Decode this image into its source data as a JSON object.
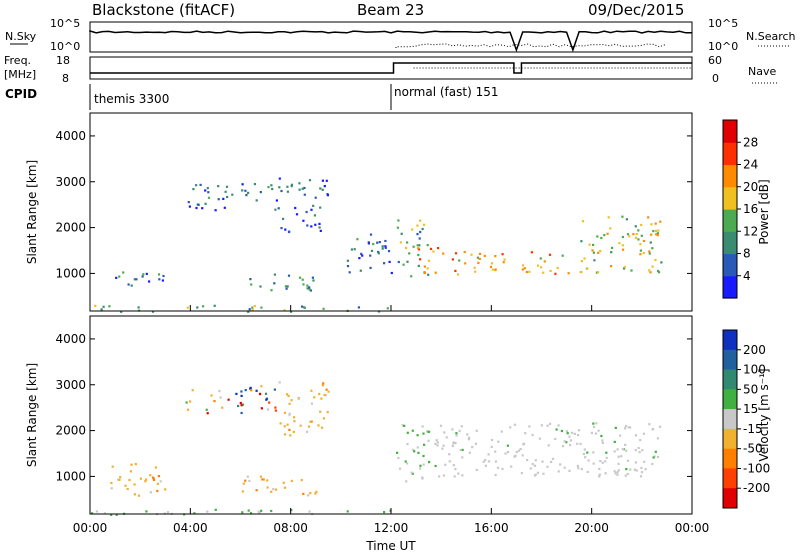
{
  "header": {
    "station": "Blackstone (fitACF)",
    "beam": "Beam 23",
    "date": "09/Dec/2015"
  },
  "summary": {
    "nsky_label": "N.Sky",
    "nsky_hi": "10^5",
    "nsky_lo": "10^0",
    "nsearch_label": "N.Search",
    "nsearch_hi": "10^5",
    "nsearch_lo": "10^0",
    "freq_label": "Freq.",
    "freq_unit": "[MHz]",
    "freq_hi": "18",
    "freq_lo": "8",
    "nave_label": "Nave",
    "nave_hi": "60",
    "nave_lo": "0",
    "cpid_label": "CPID",
    "cpid_segments": [
      {
        "label": "themis 3300",
        "start_hour": 0
      },
      {
        "label": "normal (fast) 151",
        "start_hour": 12.1
      }
    ]
  },
  "chart_data": [
    {
      "type": "heatmap",
      "panel": "power",
      "ylabel": "Slant Range [km]",
      "yticks": [
        "1000",
        "2000",
        "3000",
        "4000"
      ],
      "ylim": [
        180,
        4500
      ],
      "xlim": [
        0,
        24
      ],
      "colorbar": {
        "label": "Power [dB]",
        "ticks": [
          "4",
          "8",
          "12",
          "16",
          "20",
          "24",
          "28"
        ],
        "range": [
          0,
          32
        ],
        "colors": [
          "#1a1aff",
          "#2a5ab8",
          "#3a8c70",
          "#4caa50",
          "#f0c020",
          "#ff8c00",
          "#ff3000",
          "#e00000"
        ]
      },
      "regions": [
        {
          "t0": 0.5,
          "t1": 3.0,
          "r0": 700,
          "r1": 1050,
          "level": 0.2
        },
        {
          "t0": 3.8,
          "t1": 7.5,
          "r0": 2400,
          "r1": 3000,
          "level": 0.15
        },
        {
          "t0": 6.0,
          "t1": 9.0,
          "r0": 650,
          "r1": 1050,
          "level": 0.3
        },
        {
          "t0": 7.5,
          "t1": 9.5,
          "r0": 1900,
          "r1": 3100,
          "level": 0.15
        },
        {
          "t0": 10.0,
          "t1": 12.0,
          "r0": 1000,
          "r1": 1900,
          "level": 0.2
        },
        {
          "t0": 12.2,
          "t1": 13.5,
          "r0": 900,
          "r1": 2200,
          "level": 0.4
        },
        {
          "t0": 13.0,
          "t1": 16.5,
          "r0": 1000,
          "r1": 1600,
          "level": 0.7
        },
        {
          "t0": 17.2,
          "t1": 19.2,
          "r0": 1000,
          "r1": 1500,
          "level": 0.65
        },
        {
          "t0": 19.5,
          "t1": 22.8,
          "r0": 1000,
          "r1": 2300,
          "level": 0.55
        },
        {
          "t0": 0,
          "t1": 12,
          "r0": 180,
          "r1": 320,
          "level": 0.35
        }
      ]
    },
    {
      "type": "heatmap",
      "panel": "velocity",
      "ylabel": "Slant Range [km]",
      "yticks": [
        "1000",
        "2000",
        "3000",
        "4000"
      ],
      "ylim": [
        180,
        4500
      ],
      "xlim": [
        0,
        24
      ],
      "xticks": [
        "00:00",
        "04:00",
        "08:00",
        "12:00",
        "16:00",
        "20:00",
        "00:00"
      ],
      "xlabel": "Time UT",
      "colorbar": {
        "label": "Velocity [m s⁻¹]",
        "ticks": [
          "200",
          "100",
          "50",
          "15",
          "-15",
          "-50",
          "-100",
          "-200"
        ],
        "range": [
          -250,
          250
        ],
        "colors": [
          "#1030c0",
          "#2060a0",
          "#308a70",
          "#40b040",
          "#c8c8c8",
          "#f0b030",
          "#ff8000",
          "#ff4000",
          "#e00000"
        ]
      },
      "regions": [
        {
          "t0": 0.5,
          "t1": 3.0,
          "r0": 600,
          "r1": 1300,
          "level": "neg"
        },
        {
          "t0": 3.8,
          "t1": 7.5,
          "r0": 2400,
          "r1": 3000,
          "level": "mixed"
        },
        {
          "t0": 6.0,
          "t1": 9.0,
          "r0": 600,
          "r1": 1050,
          "level": "neg"
        },
        {
          "t0": 7.5,
          "t1": 9.5,
          "r0": 1900,
          "r1": 3100,
          "level": "neg"
        },
        {
          "t0": 12.2,
          "t1": 13.5,
          "r0": 900,
          "r1": 2200,
          "level": "pos"
        },
        {
          "t0": 13.0,
          "t1": 22.8,
          "r0": 1000,
          "r1": 2200,
          "level": "zero"
        },
        {
          "t0": 0,
          "t1": 12,
          "r0": 180,
          "r1": 320,
          "level": "pos"
        }
      ]
    }
  ]
}
